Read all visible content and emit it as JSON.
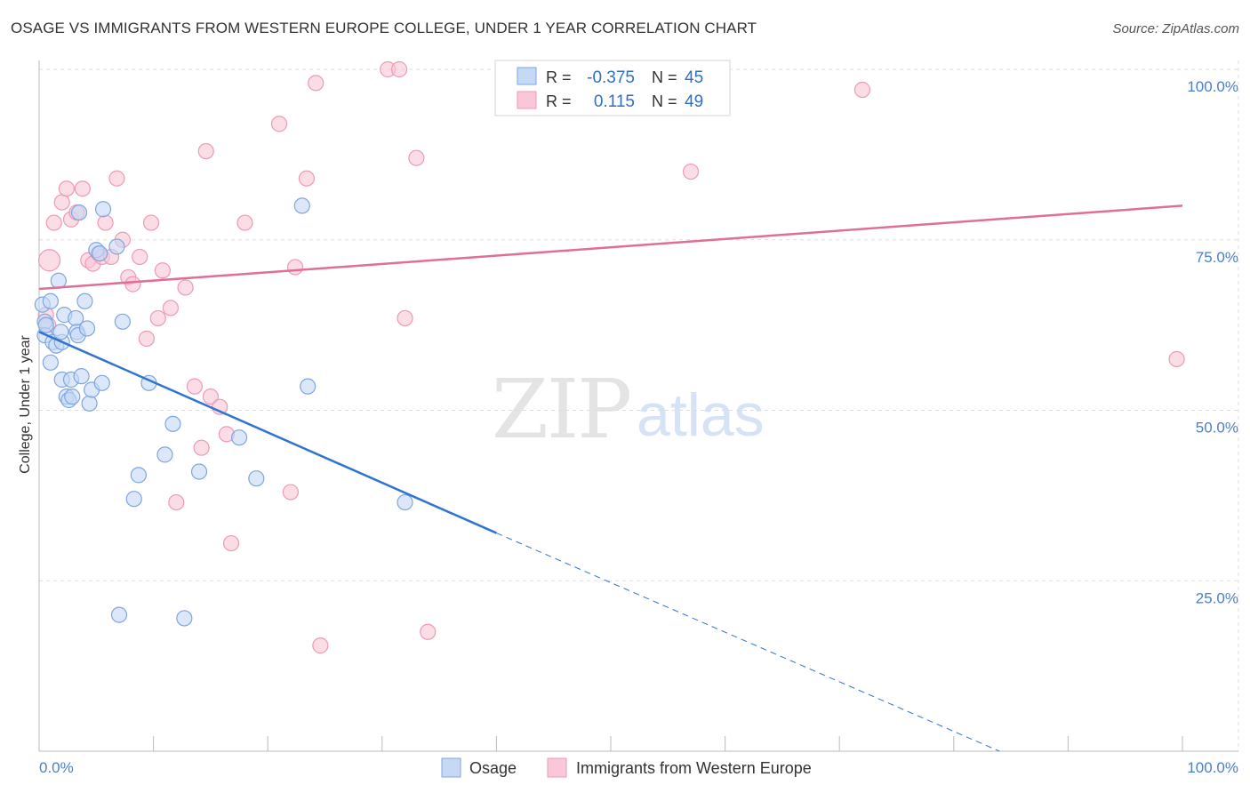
{
  "title": "OSAGE VS IMMIGRANTS FROM WESTERN EUROPE COLLEGE, UNDER 1 YEAR CORRELATION CHART",
  "source": "Source: ZipAtlas.com",
  "watermark": {
    "zip": "ZIP",
    "atlas": "atlas"
  },
  "colors": {
    "osage_fill": "#c5d9f5",
    "osage_stroke": "#7ea6e0",
    "osage_line": "#2f74d0",
    "immig_fill": "#f9c7d6",
    "immig_stroke": "#ee9ab5",
    "immig_line": "#e06e98",
    "tick_label": "#4a7fcc",
    "grid": "#dddddd"
  },
  "chart_data": {
    "type": "scatter",
    "xlabel": "",
    "ylabel": "College, Under 1 year",
    "xlim": [
      0,
      100
    ],
    "ylim": [
      0,
      100
    ],
    "x_tick_labels": [
      "0.0%",
      "100.0%"
    ],
    "y_ticks": [
      25,
      50,
      75,
      100
    ],
    "y_tick_labels": [
      "25.0%",
      "50.0%",
      "75.0%",
      "100.0%"
    ],
    "legend_stats": [
      {
        "r_label": "R =",
        "r_value": "-0.375",
        "n_label": "N =",
        "n_value": "45"
      },
      {
        "r_label": "R =",
        "r_value": "0.115",
        "n_label": "N =",
        "n_value": "49"
      }
    ],
    "series": [
      {
        "name": "Osage",
        "trend": {
          "x0": 0,
          "y0": 61.5,
          "x1": 40,
          "y1": 32.0,
          "dash_to_x": 84,
          "dash_to_y": 0
        },
        "points": [
          [
            0.3,
            65.5
          ],
          [
            0.5,
            63.0
          ],
          [
            0.5,
            61.0
          ],
          [
            1.0,
            66.0
          ],
          [
            1.0,
            57.0
          ],
          [
            1.2,
            60.0
          ],
          [
            1.5,
            59.5
          ],
          [
            1.7,
            69.0
          ],
          [
            2.0,
            60.0
          ],
          [
            2.0,
            54.5
          ],
          [
            2.2,
            64.0
          ],
          [
            2.4,
            52.0
          ],
          [
            2.6,
            51.5
          ],
          [
            2.8,
            54.5
          ],
          [
            3.2,
            63.5
          ],
          [
            3.3,
            61.5
          ],
          [
            3.4,
            61.0
          ],
          [
            3.5,
            79.0
          ],
          [
            3.7,
            55.0
          ],
          [
            4.0,
            66.0
          ],
          [
            4.2,
            62.0
          ],
          [
            4.4,
            51.0
          ],
          [
            4.6,
            53.0
          ],
          [
            5.0,
            73.5
          ],
          [
            5.3,
            73.0
          ],
          [
            5.5,
            54.0
          ],
          [
            5.6,
            79.5
          ],
          [
            6.8,
            74.0
          ],
          [
            7.3,
            63.0
          ],
          [
            8.3,
            37.0
          ],
          [
            8.7,
            40.5
          ],
          [
            9.6,
            54.0
          ],
          [
            11.0,
            43.5
          ],
          [
            11.7,
            48.0
          ],
          [
            14.0,
            41.0
          ],
          [
            17.5,
            46.0
          ],
          [
            19.0,
            40.0
          ],
          [
            23.0,
            80.0
          ],
          [
            23.5,
            53.5
          ],
          [
            32.0,
            36.5
          ],
          [
            7.0,
            20.0
          ],
          [
            12.7,
            19.5
          ],
          [
            0.6,
            62.5
          ],
          [
            1.9,
            61.5
          ],
          [
            2.9,
            52.0
          ]
        ]
      },
      {
        "name": "Immigrants from Western Europe",
        "trend": {
          "x0": 0,
          "y0": 67.8,
          "x1": 100,
          "y1": 80.0
        },
        "points": [
          [
            0.6,
            64.0
          ],
          [
            0.8,
            62.5
          ],
          [
            0.9,
            72.0
          ],
          [
            1.3,
            77.5
          ],
          [
            2.0,
            80.5
          ],
          [
            2.4,
            82.5
          ],
          [
            2.8,
            78.0
          ],
          [
            3.3,
            79.0
          ],
          [
            3.8,
            82.5
          ],
          [
            4.3,
            72.0
          ],
          [
            4.7,
            71.5
          ],
          [
            5.2,
            73.0
          ],
          [
            5.5,
            72.5
          ],
          [
            5.8,
            77.5
          ],
          [
            6.3,
            72.5
          ],
          [
            6.8,
            84.0
          ],
          [
            7.3,
            75.0
          ],
          [
            7.8,
            69.5
          ],
          [
            8.2,
            68.5
          ],
          [
            8.8,
            72.5
          ],
          [
            9.4,
            60.5
          ],
          [
            9.8,
            77.5
          ],
          [
            10.4,
            63.5
          ],
          [
            10.8,
            70.5
          ],
          [
            11.5,
            65.0
          ],
          [
            12.0,
            36.5
          ],
          [
            12.8,
            68.0
          ],
          [
            13.6,
            53.5
          ],
          [
            14.2,
            44.5
          ],
          [
            14.6,
            88.0
          ],
          [
            15.0,
            52.0
          ],
          [
            15.8,
            50.5
          ],
          [
            16.4,
            46.5
          ],
          [
            16.8,
            30.5
          ],
          [
            18.0,
            77.5
          ],
          [
            21.0,
            92.0
          ],
          [
            22.0,
            38.0
          ],
          [
            22.4,
            71.0
          ],
          [
            23.4,
            84.0
          ],
          [
            24.2,
            98.0
          ],
          [
            24.6,
            15.5
          ],
          [
            30.5,
            100.0
          ],
          [
            31.5,
            100.0
          ],
          [
            32.0,
            63.5
          ],
          [
            33.0,
            87.0
          ],
          [
            34.0,
            17.5
          ],
          [
            57.0,
            85.0
          ],
          [
            72.0,
            97.0
          ],
          [
            99.5,
            57.5
          ]
        ]
      }
    ]
  },
  "legend": [
    {
      "label": "Osage"
    },
    {
      "label": "Immigrants from Western Europe"
    }
  ]
}
